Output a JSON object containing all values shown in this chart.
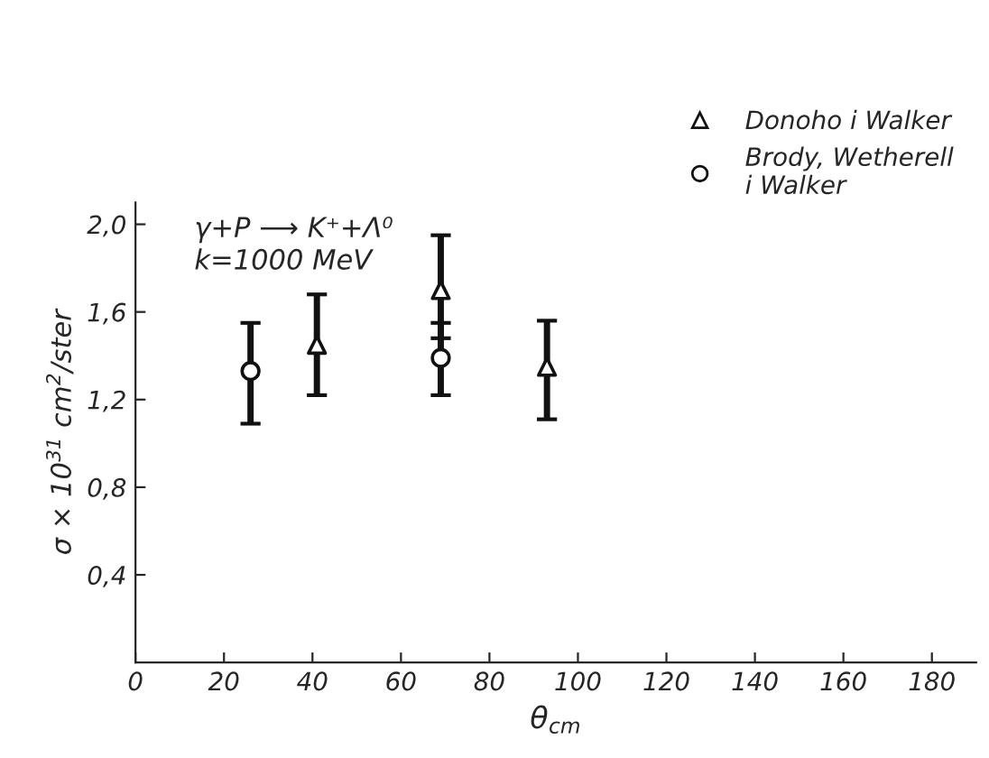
{
  "chart_data": {
    "type": "scatter",
    "xlabel": "θ$_{cm}$",
    "ylabel": "σ × 10$^{31}$ cm$^{2}$/ster",
    "annotations": [
      "γ+P ⟶ K⁺+Λ⁰",
      "k=1000 MeV"
    ],
    "series": [
      {
        "name": "Donoho i Walker",
        "color": "#111111",
        "marker": "triangle",
        "x": [
          41,
          69,
          93
        ],
        "values": [
          1.45,
          1.7,
          1.35
        ],
        "errors": [
          [
            1.22,
            1.68
          ],
          [
            1.48,
            1.95
          ],
          [
            1.11,
            1.56
          ]
        ]
      },
      {
        "name": "Brody, Wetherell\ni Walker",
        "color": "#111111",
        "marker": "circle",
        "x": [
          26,
          69
        ],
        "values": [
          1.33,
          1.39
        ],
        "errors": [
          [
            1.09,
            1.55
          ],
          [
            1.22,
            1.55
          ]
        ]
      }
    ],
    "xlim": [
      0,
      190
    ],
    "xticks": [
      0,
      20,
      40,
      60,
      80,
      100,
      120,
      140,
      160,
      180
    ],
    "ylim": [
      0,
      2.1
    ],
    "yticks": [
      {
        "value": 0.4,
        "label": "0,4"
      },
      {
        "value": 0.8,
        "label": "0,8"
      },
      {
        "value": 1.2,
        "label": "1,2"
      },
      {
        "value": 1.6,
        "label": "1,6"
      },
      {
        "value": 2.0,
        "label": "2,0"
      }
    ],
    "legend": "top right",
    "grid": false
  }
}
